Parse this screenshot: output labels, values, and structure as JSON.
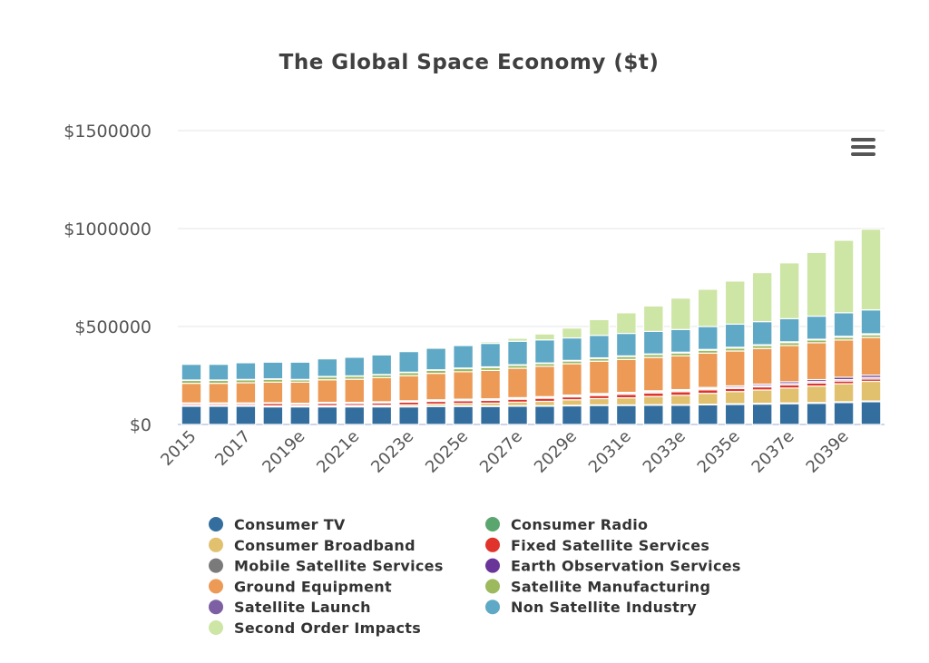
{
  "chart_data": {
    "type": "bar",
    "stacked": true,
    "title": "The Global Space Economy ($t)",
    "xlabel": "",
    "ylabel": "",
    "ylim": [
      0,
      1500000
    ],
    "y_ticks": [
      "$0",
      "$500000",
      "$1000000",
      "$1500000"
    ],
    "y_tick_values": [
      0,
      500000,
      1000000,
      1500000
    ],
    "grid": true,
    "legend_position": "bottom",
    "categories": [
      "2015",
      "2016",
      "2017",
      "2018",
      "2019e",
      "2020e",
      "2021e",
      "2022e",
      "2023e",
      "2024e",
      "2025e",
      "2026e",
      "2027e",
      "2028e",
      "2029e",
      "2030e",
      "2031e",
      "2032e",
      "2033e",
      "2034e",
      "2035e",
      "2036e",
      "2037e",
      "2038e",
      "2039e",
      "2040e"
    ],
    "x_tick_labels_shown": [
      "2015",
      "2017",
      "2019e",
      "2021e",
      "2023e",
      "2025e",
      "2027e",
      "2029e",
      "2031e",
      "2033e",
      "2035e",
      "2037e",
      "2039e"
    ],
    "series": [
      {
        "name": "Consumer TV",
        "color": "#336e9e",
        "values": [
          93000,
          93000,
          93000,
          90000,
          90000,
          90000,
          90000,
          90000,
          90000,
          92000,
          92000,
          92000,
          93000,
          93000,
          95000,
          97000,
          97000,
          98000,
          98000,
          100000,
          102000,
          104000,
          106000,
          108000,
          112000,
          116000
        ]
      },
      {
        "name": "Consumer Radio",
        "color": "#5aa66e",
        "values": [
          2000,
          2000,
          2000,
          2000,
          2000,
          2000,
          2000,
          2000,
          2000,
          2000,
          3000,
          3000,
          3000,
          3000,
          3000,
          3000,
          3000,
          3000,
          3000,
          3000,
          4000,
          4000,
          4000,
          4000,
          4000,
          4000
        ]
      },
      {
        "name": "Consumer Broadband",
        "color": "#e1c06e",
        "values": [
          3000,
          3000,
          3000,
          3000,
          4000,
          4000,
          5000,
          6000,
          8000,
          10000,
          12000,
          14000,
          18000,
          22000,
          28000,
          32000,
          36000,
          42000,
          48000,
          56000,
          62000,
          68000,
          76000,
          84000,
          92000,
          100000
        ]
      },
      {
        "name": "Fixed Satellite Services",
        "color": "#e0332b",
        "values": [
          8000,
          8000,
          8000,
          12000,
          8000,
          12000,
          10000,
          12000,
          14000,
          14000,
          14000,
          14000,
          15000,
          16000,
          15000,
          16000,
          18000,
          18000,
          18000,
          18000,
          16000,
          16000,
          16000,
          16000,
          14000,
          12000
        ]
      },
      {
        "name": "Mobile Satellite Services",
        "color": "#7a7a7a",
        "values": [
          3000,
          3000,
          3000,
          3000,
          3000,
          3000,
          4000,
          4000,
          4000,
          5000,
          5000,
          5000,
          5000,
          5000,
          5000,
          6000,
          6000,
          6000,
          6000,
          6000,
          6000,
          6000,
          7000,
          7000,
          7000,
          8000
        ]
      },
      {
        "name": "Earth Observation Services",
        "color": "#6a3598",
        "values": [
          1000,
          1000,
          1000,
          1000,
          1000,
          2000,
          2000,
          2000,
          3000,
          3000,
          3000,
          3000,
          3000,
          3000,
          4000,
          4000,
          4000,
          5000,
          5000,
          6000,
          7000,
          8000,
          9000,
          10000,
          12000,
          12000
        ]
      },
      {
        "name": "Ground Equipment",
        "color": "#ec9a55",
        "values": [
          100000,
          100000,
          103000,
          105000,
          108000,
          115000,
          118000,
          123000,
          128000,
          135000,
          140000,
          145000,
          150000,
          155000,
          160000,
          165000,
          168000,
          170000,
          172000,
          175000,
          178000,
          182000,
          185000,
          188000,
          190000,
          192000
        ]
      },
      {
        "name": "Satellite Manufacturing",
        "color": "#9cba5d",
        "values": [
          15000,
          15000,
          15000,
          15000,
          12000,
          15000,
          15000,
          14000,
          16000,
          16000,
          16000,
          15000,
          15000,
          14000,
          14000,
          14000,
          15000,
          15000,
          15000,
          15000,
          15000,
          15000,
          15000,
          14000,
          14000,
          14000
        ]
      },
      {
        "name": "Satellite Launch",
        "color": "#7d5fa3",
        "values": [
          2000,
          2000,
          2000,
          2000,
          2000,
          2000,
          2000,
          2000,
          2000,
          2000,
          3000,
          3000,
          3000,
          3000,
          3000,
          3000,
          3000,
          3000,
          4000,
          4000,
          4000,
          4000,
          4000,
          4000,
          5000,
          5000
        ]
      },
      {
        "name": "Non Satellite Industry",
        "color": "#5fa9c6",
        "values": [
          80000,
          80000,
          85000,
          85000,
          88000,
          90000,
          95000,
          100000,
          105000,
          110000,
          115000,
          120000,
          120000,
          118000,
          115000,
          115000,
          115000,
          115000,
          116000,
          117000,
          118000,
          118000,
          118000,
          118000,
          120000,
          122000
        ]
      },
      {
        "name": "Second Order Impacts",
        "color": "#cde5a5",
        "values": [
          0,
          0,
          0,
          0,
          0,
          0,
          0,
          0,
          0,
          0,
          5000,
          8000,
          15000,
          30000,
          50000,
          80000,
          105000,
          130000,
          160000,
          190000,
          220000,
          250000,
          285000,
          325000,
          370000,
          412000
        ]
      }
    ]
  },
  "menu": {
    "icon": "hamburger-menu-icon"
  }
}
